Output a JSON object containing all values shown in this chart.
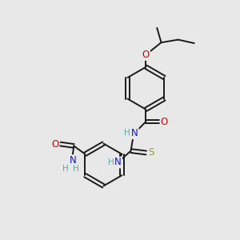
{
  "bg_color": "#e8e8e8",
  "bond_color": "#1a1a1a",
  "bond_width": 1.4,
  "atom_colors": {
    "C": "#1a1a1a",
    "H": "#5aabab",
    "N": "#1414d0",
    "O": "#d00000",
    "S": "#b89000"
  },
  "font_size": 8.0
}
